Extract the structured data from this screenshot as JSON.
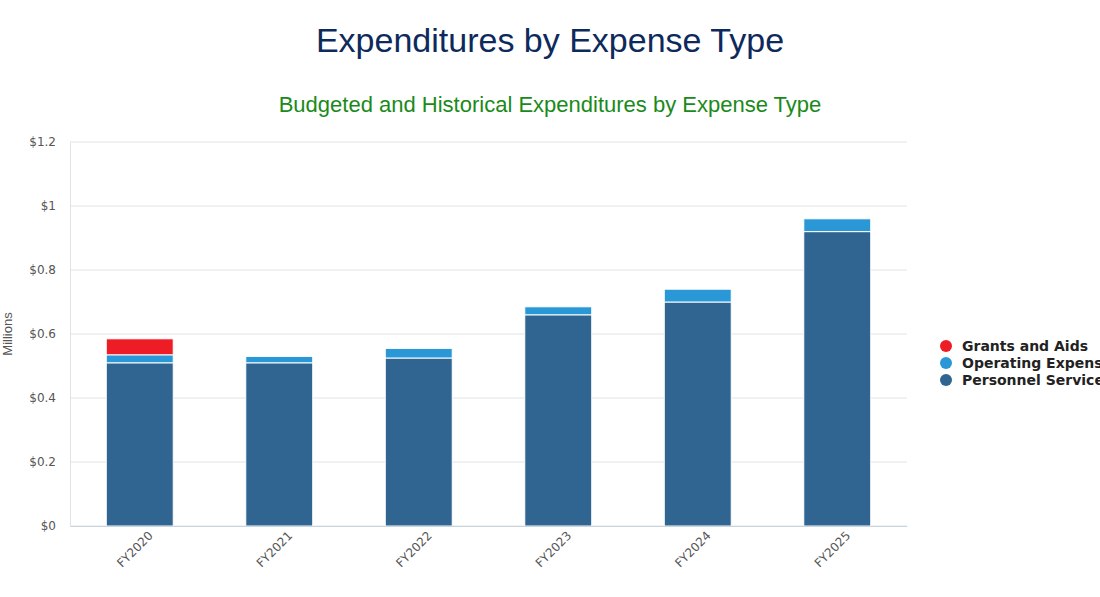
{
  "chart_data": {
    "type": "bar",
    "title": "Expenditures by Expense Type",
    "subtitle": "Budgeted and Historical Expenditures by Expense Type",
    "y_label": "Millions",
    "categories": [
      "FY2020",
      "FY2021",
      "FY2022",
      "FY2023",
      "FY2024",
      "FY2025"
    ],
    "series": [
      {
        "name": "Personnel Services",
        "color": "#2f6590",
        "values": [
          0.51,
          0.51,
          0.525,
          0.66,
          0.7,
          0.92
        ]
      },
      {
        "name": "Operating Expenses",
        "color": "#2a98d6",
        "values": [
          0.025,
          0.02,
          0.03,
          0.025,
          0.04,
          0.04
        ]
      },
      {
        "name": "Grants and Aids",
        "color": "#ee1c25",
        "values": [
          0.05,
          0,
          0,
          0,
          0,
          0
        ]
      }
    ],
    "ylim": [
      0,
      1.2
    ],
    "yticks": [
      {
        "value": 0,
        "label": "$0"
      },
      {
        "value": 0.2,
        "label": "$0.2"
      },
      {
        "value": 0.4,
        "label": "$0.4"
      },
      {
        "value": 0.6,
        "label": "$0.6"
      },
      {
        "value": 0.8,
        "label": "$0.8"
      },
      {
        "value": 1,
        "label": "$1"
      },
      {
        "value": 1.2,
        "label": "$1.2"
      }
    ],
    "stacked": true,
    "grid": true,
    "legend": "right"
  }
}
